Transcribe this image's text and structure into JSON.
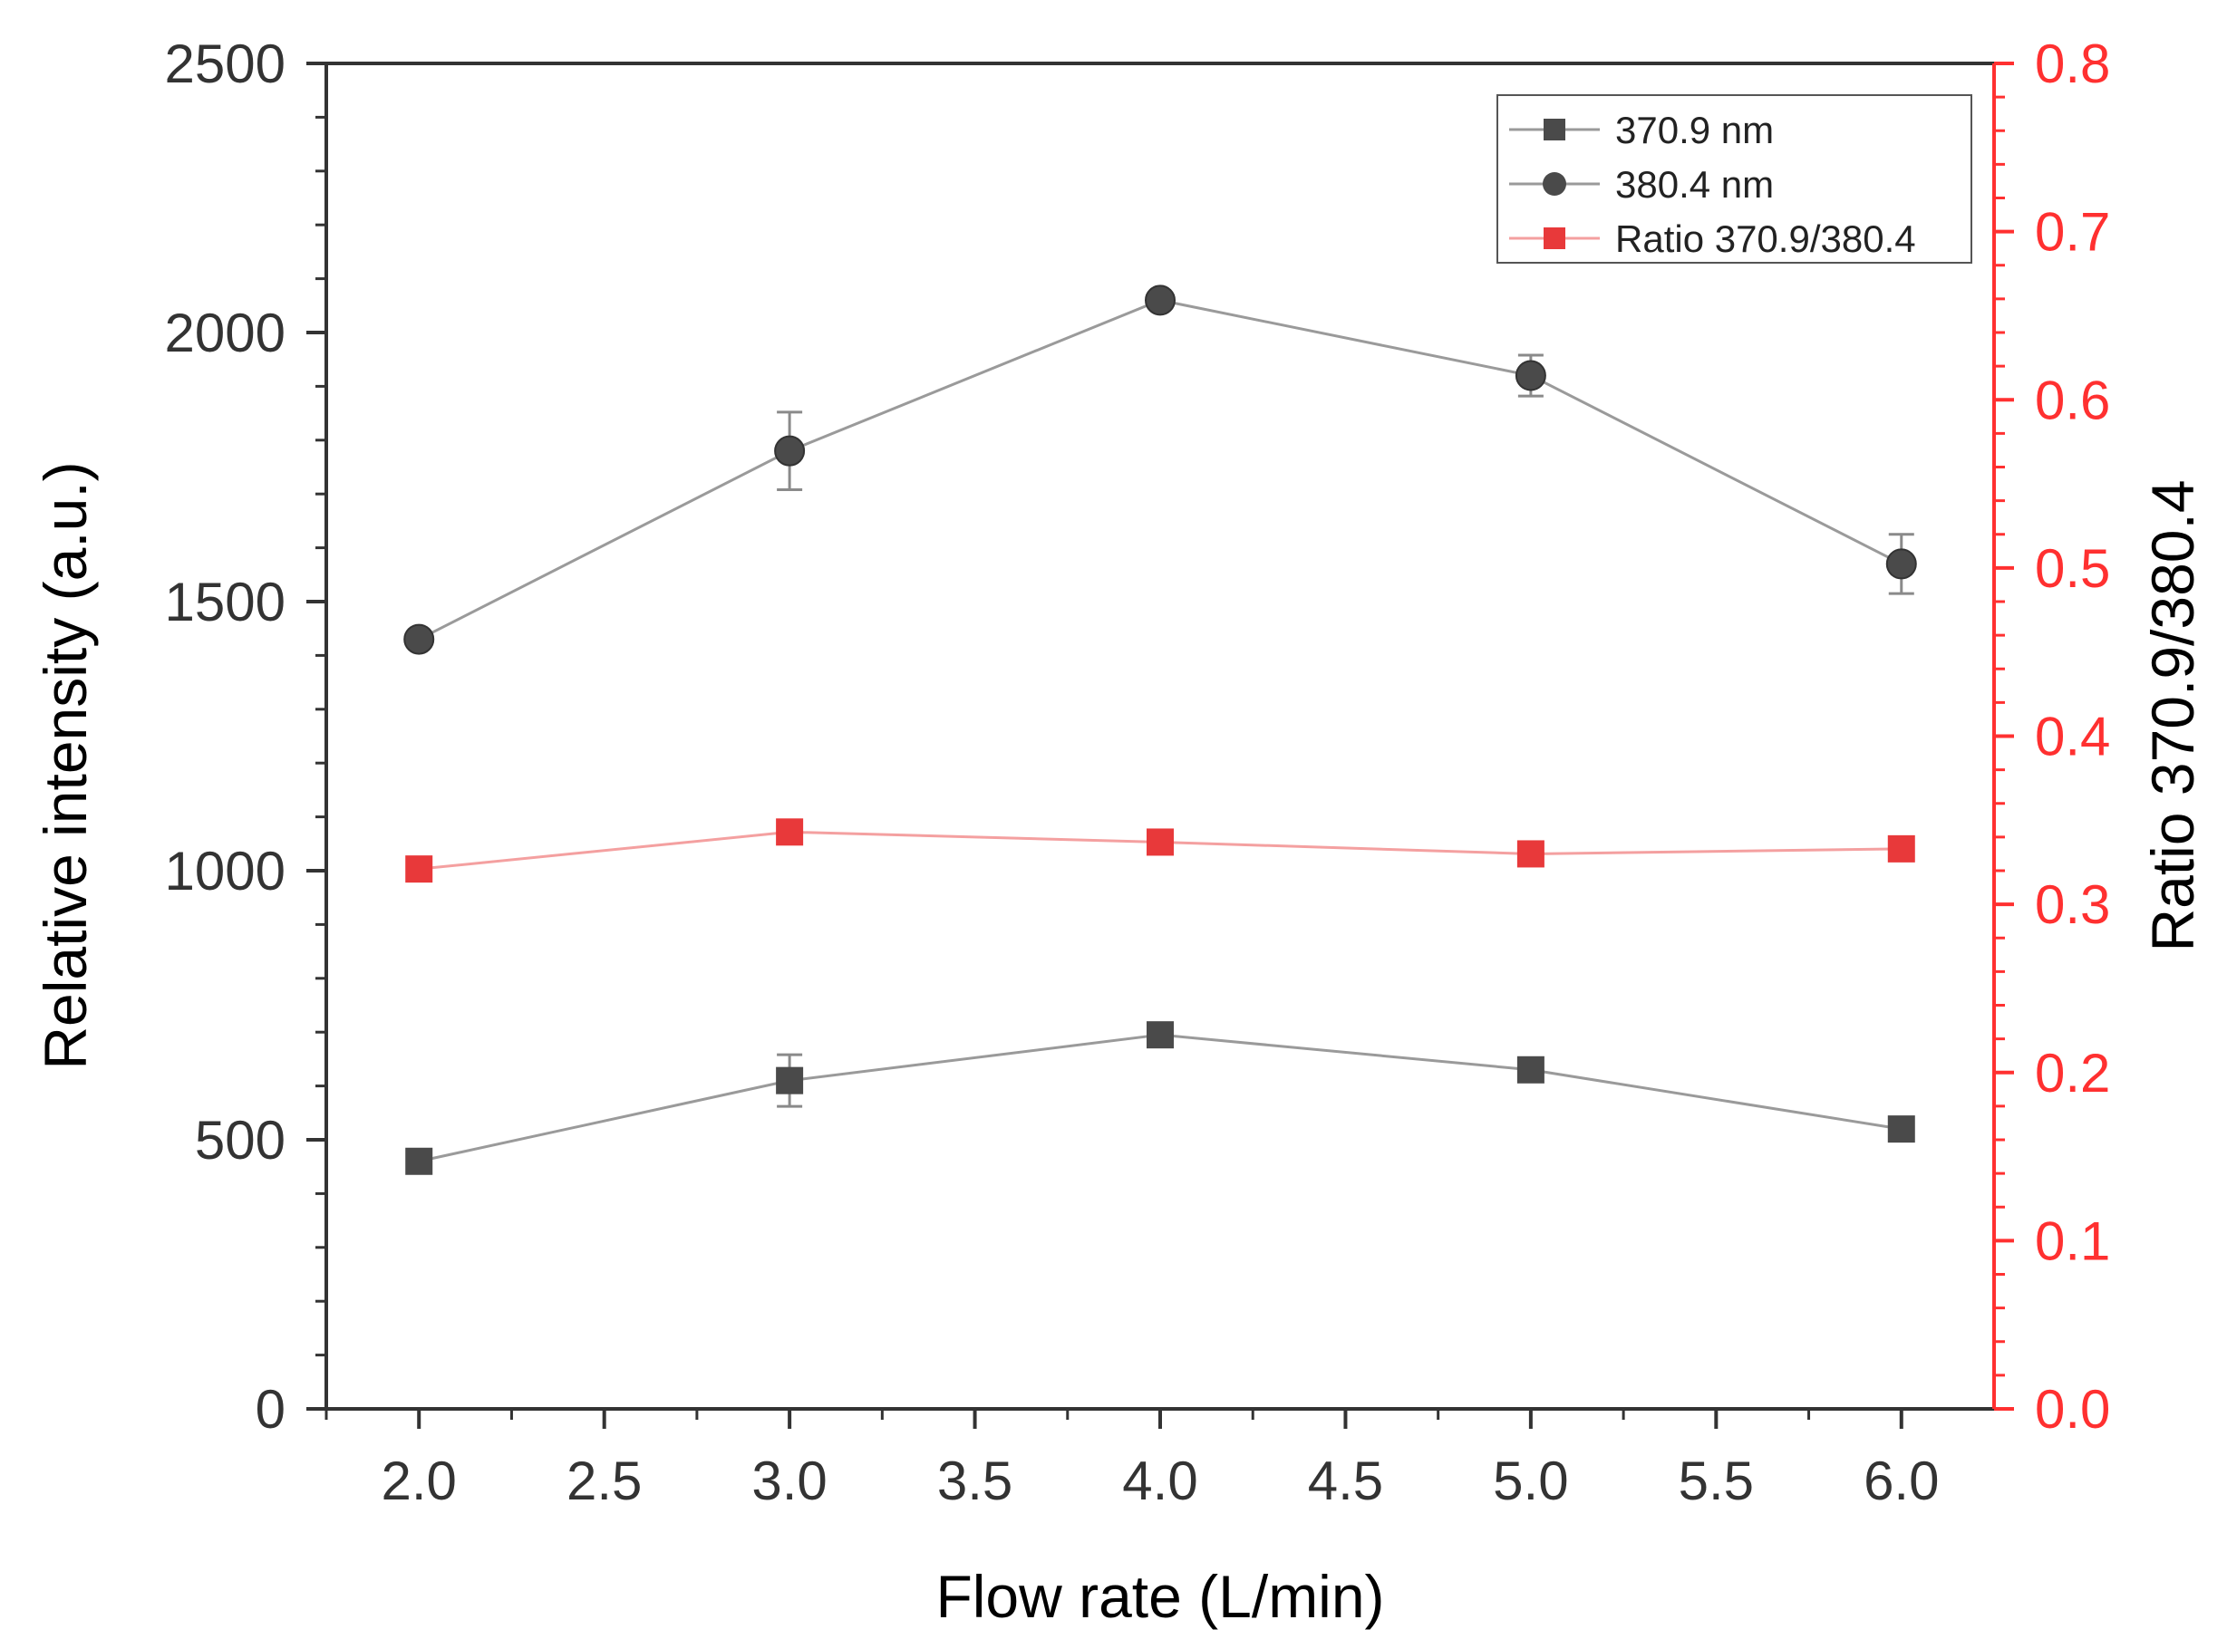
{
  "chart_data": {
    "type": "line",
    "title": "",
    "xlabel": "Flow rate (L/min)",
    "ylabel": "Relative intensity (a.u.)",
    "y2label": "Ratio 370.9/380.4",
    "xlim": [
      1.75,
      6.25
    ],
    "ylim": [
      0,
      2500
    ],
    "y2lim": [
      0.0,
      0.8
    ],
    "xticks": [
      "2.0",
      "2.5",
      "3.0",
      "3.5",
      "4.0",
      "4.5",
      "5.0",
      "5.5",
      "6.0"
    ],
    "yticks": [
      "0",
      "500",
      "1000",
      "1500",
      "2000",
      "2500"
    ],
    "y2ticks": [
      "0.0",
      "0.1",
      "0.2",
      "0.3",
      "0.4",
      "0.5",
      "0.6",
      "0.7",
      "0.8"
    ],
    "grid": false,
    "legend_position": "top-right",
    "x": [
      2.0,
      3.0,
      4.0,
      5.0,
      6.0
    ],
    "series": [
      {
        "name": "370.9 nm",
        "axis": "left",
        "marker": "square",
        "color": "#4a4a4a",
        "line_color": "#9a9a9a",
        "values": [
          460,
          610,
          695,
          630,
          520
        ],
        "errors": [
          10,
          48,
          12,
          10,
          10
        ]
      },
      {
        "name": "380.4 nm",
        "axis": "left",
        "marker": "circle",
        "color": "#4a4a4a",
        "line_color": "#9a9a9a",
        "values": [
          1430,
          1780,
          2060,
          1920,
          1570
        ],
        "errors": [
          10,
          72,
          10,
          38,
          55
        ]
      },
      {
        "name": "Ratio 370.9/380.4",
        "axis": "right",
        "marker": "square",
        "color": "#e8393a",
        "line_color": "#f4a0a0",
        "values": [
          0.321,
          0.343,
          0.337,
          0.33,
          0.333
        ],
        "errors": [
          0,
          0,
          0,
          0,
          0
        ]
      }
    ],
    "colors": {
      "right_axis": "#ff3030",
      "axis": "#333333"
    }
  }
}
